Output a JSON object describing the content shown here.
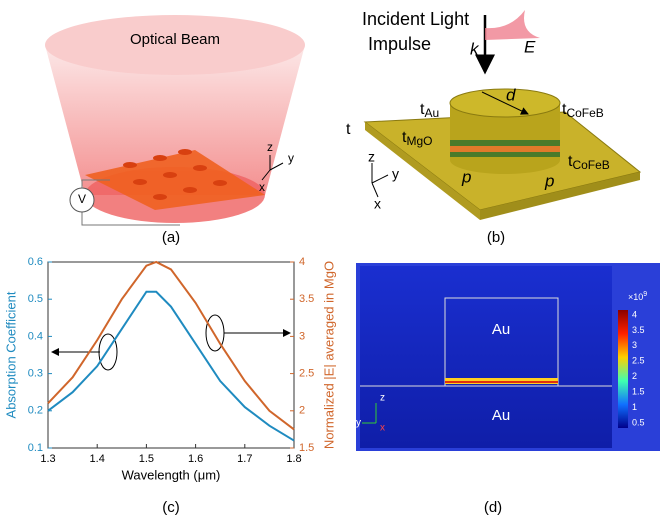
{
  "panel_a": {
    "beam_label": "Optical Beam",
    "source_label": "V",
    "axes": [
      "z",
      "y",
      "x"
    ],
    "caption": "(a)"
  },
  "panel_b": {
    "incident": [
      "Incident Light",
      "Impulse"
    ],
    "k": "k",
    "e": "E",
    "d": "d",
    "t": "t",
    "t_au": {
      "main": "t",
      "sub": "Au"
    },
    "t_mgo": {
      "main": "t",
      "sub": "MgO"
    },
    "t_cofeb_top": {
      "main": "t",
      "sub": "CoFeB"
    },
    "t_cofeb_bottom": {
      "main": "t",
      "sub": "CoFeB"
    },
    "p": [
      "p",
      "p"
    ],
    "axes": [
      "z",
      "y",
      "x"
    ],
    "caption": "(b)"
  },
  "chart_data": {
    "type": "line",
    "caption": "(c)",
    "xlabel": "Wavelength (μm)",
    "ylabel": "Absorption Coefficient",
    "y2label": "Normalized |E| averaged in MgO",
    "x": [
      1.3,
      1.35,
      1.4,
      1.45,
      1.5,
      1.52,
      1.55,
      1.6,
      1.65,
      1.7,
      1.75,
      1.8
    ],
    "series": [
      {
        "name": "Absorption Coefficient",
        "color": "#1f8bc0",
        "values": [
          0.2,
          0.25,
          0.32,
          0.42,
          0.52,
          0.52,
          0.48,
          0.38,
          0.28,
          0.21,
          0.16,
          0.12
        ]
      },
      {
        "name": "Normalized |E| averaged in MgO",
        "color": "#d0662b",
        "axis": "y2",
        "values": [
          2.1,
          2.45,
          2.95,
          3.5,
          3.95,
          4.0,
          3.9,
          3.45,
          2.9,
          2.4,
          2.0,
          1.75
        ]
      }
    ],
    "xlim": [
      1.3,
      1.8
    ],
    "xticks": [
      1.3,
      1.4,
      1.5,
      1.6,
      1.7,
      1.8
    ],
    "ylim": [
      0.1,
      0.6
    ],
    "yticks": [
      0.1,
      0.2,
      0.3,
      0.4,
      0.5,
      0.6
    ],
    "y2lim": [
      1.5,
      4
    ],
    "y2ticks": [
      1.5,
      2,
      2.5,
      3,
      3.5,
      4
    ],
    "grid": false
  },
  "panel_d": {
    "regions": [
      "Au",
      "Au"
    ],
    "axes": [
      "z",
      "y",
      "x"
    ],
    "colorbar": {
      "scale": "×10",
      "exp": "9",
      "ticks": [
        4,
        3.5,
        3,
        2.5,
        2,
        1.5,
        1,
        0.5
      ]
    },
    "caption": "(d)"
  }
}
